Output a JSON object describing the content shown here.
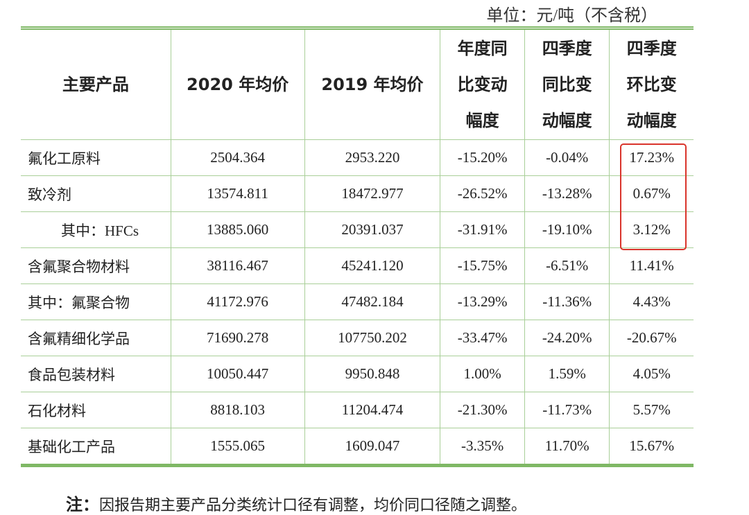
{
  "unit": "单位：元/吨（不含税）",
  "table": {
    "header": [
      "主要产品",
      "2020 年均价",
      "2019 年均价",
      "年度同比变动幅度",
      "四季度同比变动幅度",
      "四季度环比变动幅度"
    ],
    "rows": [
      [
        "氟化工原料",
        "2504.364",
        "2953.220",
        "-15.20%",
        "-0.04%",
        "17.23%"
      ],
      [
        "致冷剂",
        "13574.811",
        "18472.977",
        "-26.52%",
        "-13.28%",
        "0.67%"
      ],
      [
        "其中：HFCs",
        "13885.060",
        "20391.037",
        "-31.91%",
        "-19.10%",
        "3.12%"
      ],
      [
        "含氟聚合物材料",
        "38116.467",
        "45241.120",
        "-15.75%",
        "-6.51%",
        "11.41%"
      ],
      [
        "其中：氟聚合物",
        "41172.976",
        "47482.184",
        "-13.29%",
        "-11.36%",
        "4.43%"
      ],
      [
        "含氟精细化学品",
        "71690.278",
        "107750.202",
        "-33.47%",
        "-24.20%",
        "-20.67%"
      ],
      [
        "食品包装材料",
        "10050.447",
        "9950.848",
        "1.00%",
        "1.59%",
        "4.05%"
      ],
      [
        "石化材料",
        "8818.103",
        "11204.474",
        "-21.30%",
        "-11.73%",
        "5.57%"
      ],
      [
        "基础化工产品",
        "1555.065",
        "1609.047",
        "-3.35%",
        "11.70%",
        "15.67%"
      ]
    ]
  },
  "note": {
    "label": "注：",
    "text": "因报告期主要产品分类统计口径有调整，均价同口径随之调整。"
  }
}
